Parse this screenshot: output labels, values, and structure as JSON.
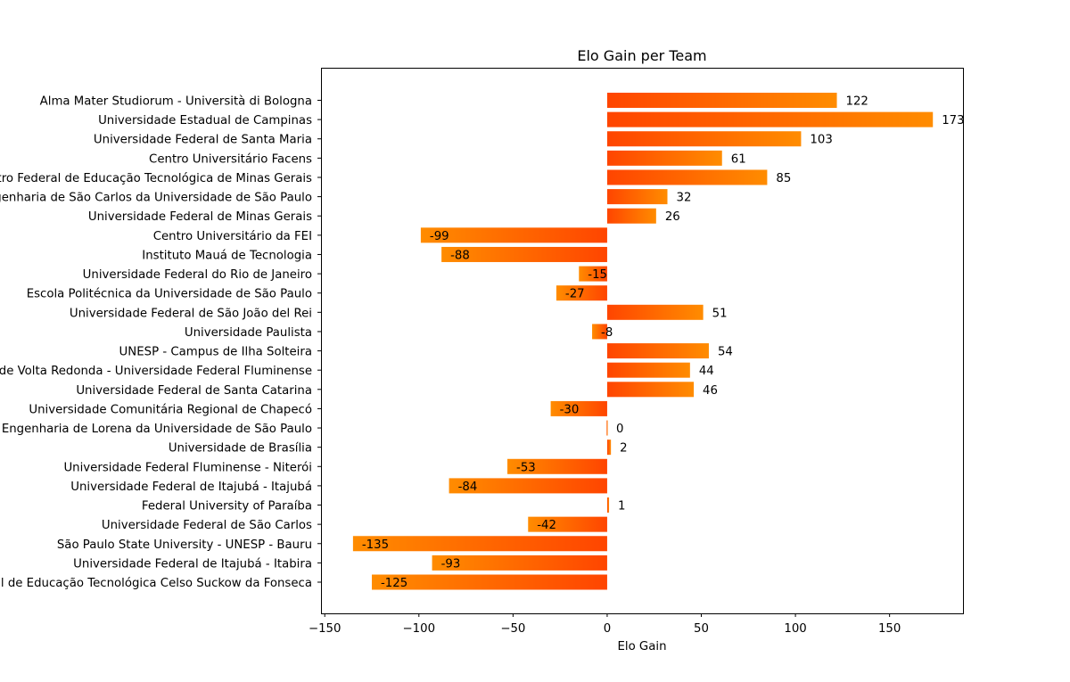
{
  "chart_data": {
    "type": "bar",
    "orientation": "horizontal",
    "title": "Elo Gain per Team",
    "xlabel": "Elo Gain",
    "ylabel": "",
    "xlim": [
      -152,
      189
    ],
    "xticks": [
      -150,
      -100,
      -50,
      0,
      50,
      100,
      150
    ],
    "xtick_labels": [
      "−150",
      "−100",
      "−50",
      "0",
      "50",
      "100",
      "150"
    ],
    "grid": false,
    "colors": {
      "gradient_light": "#ff8c00",
      "gradient_dark": "#ff4500"
    },
    "categories": [
      "Alma Mater Studiorum - Università di Bologna",
      "Universidade Estadual de Campinas",
      "Universidade Federal de Santa Maria",
      "Centro Universitário Facens",
      "Centro Federal de Educação Tecnológica de Minas Gerais",
      "Escola de Engenharia de São Carlos da Universidade de São Paulo",
      "Universidade Federal de Minas Gerais",
      "Centro Universitário da FEI",
      "Instituto Mauá de Tecnologia",
      "Universidade Federal do Rio de Janeiro",
      "Escola Politécnica da Universidade de São Paulo",
      "Universidade Federal de São João del Rei",
      "Universidade Paulista",
      "UNESP - Campus de Ilha Solteira",
      "Escola de Engenharia Industrial Metalúrgica de Volta Redonda - Universidade Federal Fluminense",
      "Universidade Federal de Santa Catarina",
      "Universidade Comunitária Regional de Chapecó",
      "Escola de Engenharia de Lorena da Universidade de São Paulo",
      "Universidade de Brasília",
      "Universidade Federal Fluminense - Niterói",
      "Universidade Federal de Itajubá - Itajubá",
      "Federal University of Paraíba",
      "Universidade Federal de São Carlos",
      "São Paulo State University - UNESP - Bauru",
      "Universidade Federal de Itajubá - Itabira",
      "Centro Federal de Educação Tecnológica Celso Suckow da Fonseca"
    ],
    "values": [
      122,
      173,
      103,
      61,
      85,
      32,
      26,
      -99,
      -88,
      -15,
      -27,
      51,
      -8,
      54,
      44,
      46,
      -30,
      0,
      2,
      -53,
      -84,
      1,
      -42,
      -135,
      -93,
      -125
    ]
  }
}
